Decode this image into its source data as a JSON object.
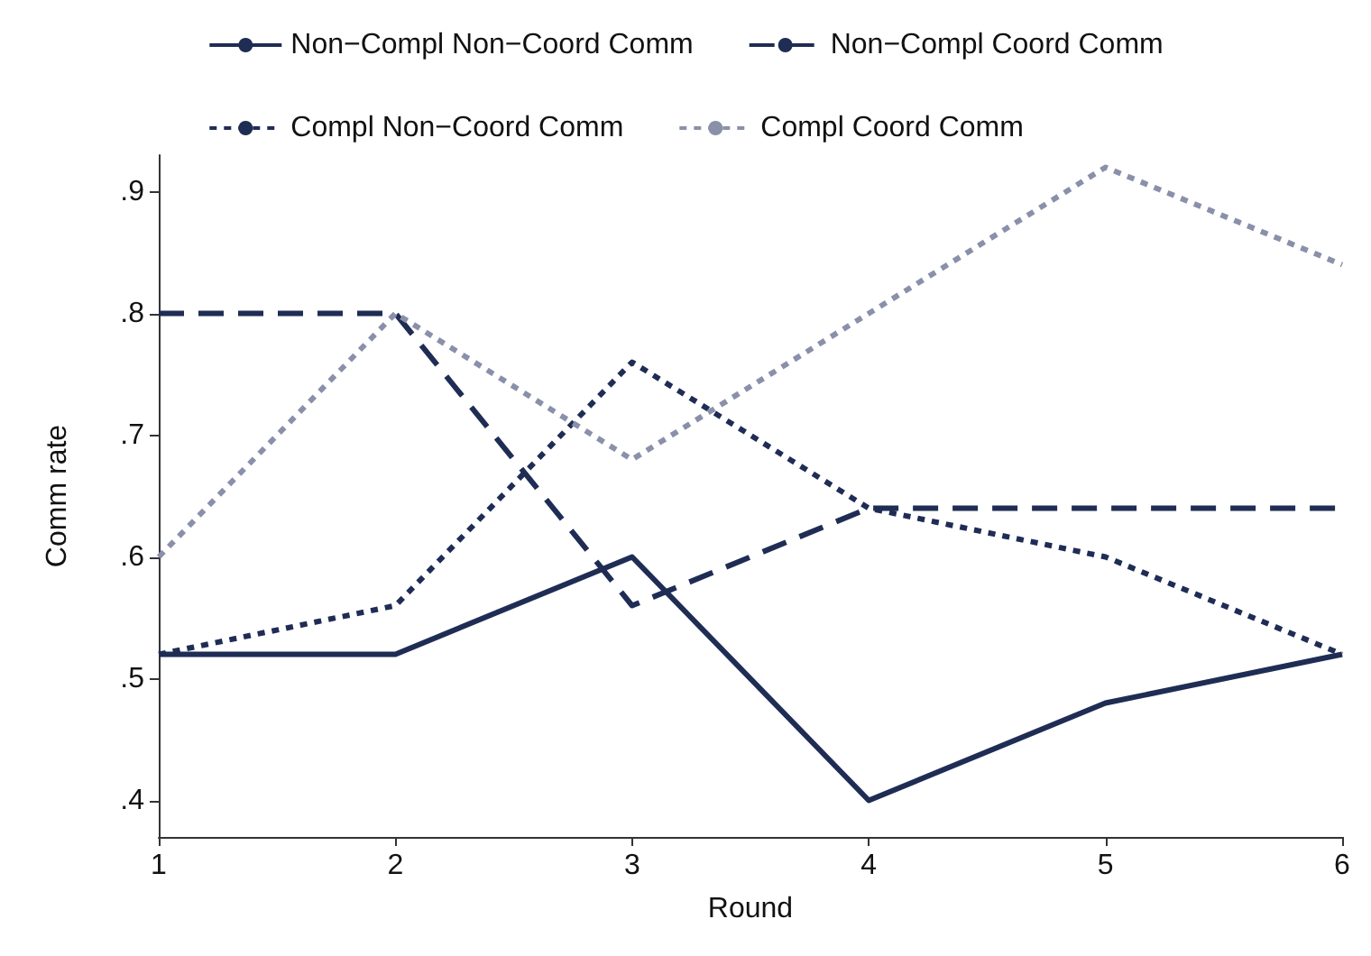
{
  "chart_data": {
    "type": "line",
    "xlabel": "Round",
    "ylabel": "Comm rate",
    "x": [
      1,
      2,
      3,
      4,
      5,
      6
    ],
    "series": [
      {
        "name": "Non−Compl Non−Coord Comm",
        "color": "#1f2d55",
        "line_style": "solid",
        "values": [
          0.52,
          0.52,
          0.6,
          0.4,
          0.48,
          0.52
        ]
      },
      {
        "name": "Non−Compl Coord Comm",
        "color": "#1f2d55",
        "line_style": "dashed",
        "values": [
          0.8,
          0.8,
          0.56,
          0.64,
          0.64,
          0.64
        ]
      },
      {
        "name": "Compl Non−Coord Comm",
        "color": "#1f2d55",
        "line_style": "dotted",
        "values": [
          0.52,
          0.56,
          0.76,
          0.64,
          0.6,
          0.52
        ]
      },
      {
        "name": "Compl Coord Comm",
        "color": "#8a90aa",
        "line_style": "dotted",
        "values": [
          0.6,
          0.8,
          0.68,
          0.8,
          0.92,
          0.84
        ]
      }
    ],
    "xlim": [
      1,
      6
    ],
    "xticks": [
      1,
      2,
      3,
      4,
      5,
      6
    ],
    "ylim": [
      0.37,
      0.93
    ],
    "yticks": [
      {
        "value": 0.4,
        "label": ".4"
      },
      {
        "value": 0.5,
        "label": ".5"
      },
      {
        "value": 0.6,
        "label": ".6"
      },
      {
        "value": 0.7,
        "label": ".7"
      },
      {
        "value": 0.8,
        "label": ".8"
      },
      {
        "value": 0.9,
        "label": ".9"
      }
    ],
    "grid": false,
    "legend": "top",
    "marker": "none"
  }
}
